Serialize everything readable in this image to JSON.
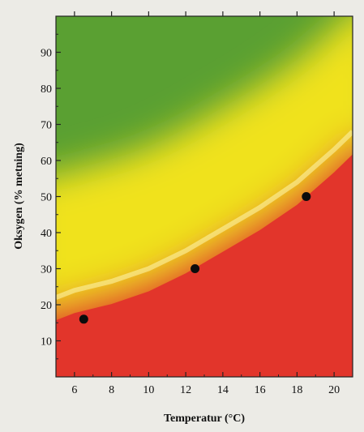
{
  "chart_data": {
    "type": "heatmap",
    "title": "",
    "xlabel": "Temperatur (°C)",
    "ylabel": "Oksygen (% metning)",
    "xlim": [
      5,
      21
    ],
    "ylim": [
      0,
      100
    ],
    "x_ticks": [
      6,
      8,
      10,
      12,
      14,
      16,
      18,
      20
    ],
    "y_ticks": [
      10,
      20,
      30,
      40,
      50,
      60,
      70,
      80,
      90
    ],
    "grid": false,
    "legend": "none",
    "background_zones": {
      "colors": [
        "#e2352b",
        "#f0e21e",
        "#5aa032"
      ],
      "threshold_curve": {
        "x": [
          5,
          6,
          8,
          10,
          12,
          14,
          16,
          18,
          20,
          21
        ],
        "y": [
          22,
          24,
          26.5,
          30,
          35,
          41,
          47,
          54,
          63,
          68
        ]
      }
    },
    "series": [
      {
        "type": "scatter",
        "x": [
          6.5,
          12.5,
          18.5
        ],
        "y": [
          16,
          30,
          50
        ]
      }
    ]
  }
}
